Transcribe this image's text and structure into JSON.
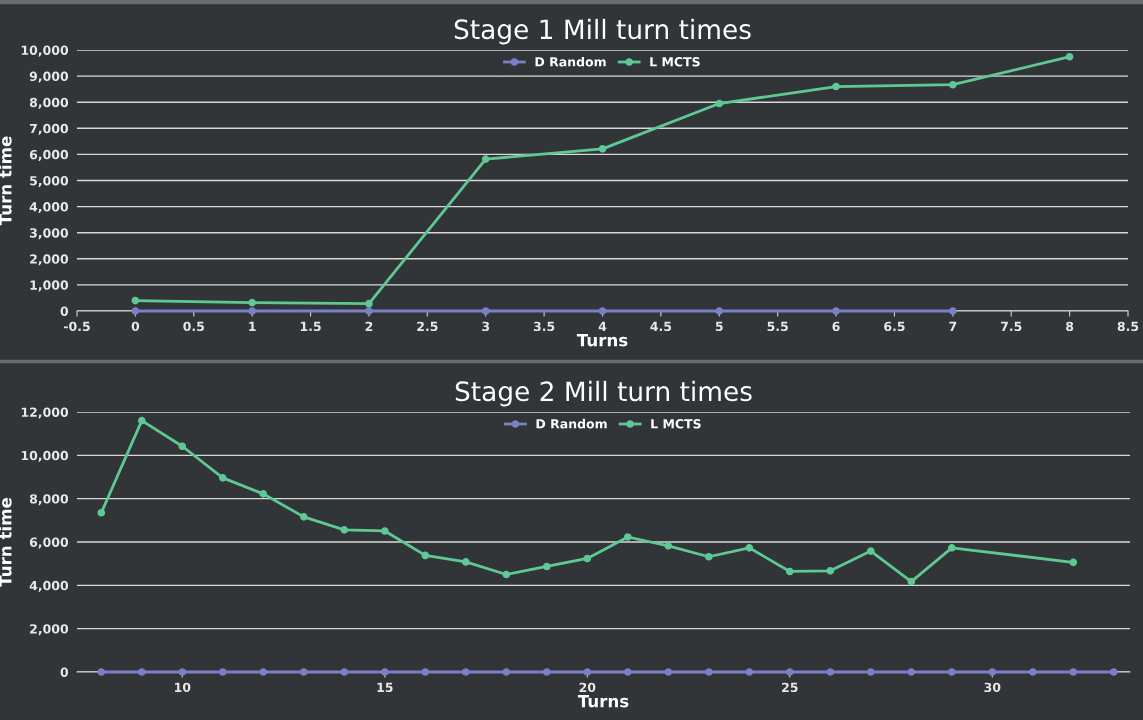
{
  "chart_data": [
    {
      "type": "line",
      "title": "Stage 1 Mill turn times",
      "xlabel": "Turns",
      "ylabel": "Turn time",
      "xlim": [
        -0.5,
        8.5
      ],
      "xticks": [
        -0.5,
        0,
        0.5,
        1,
        1.5,
        2,
        2.5,
        3,
        3.5,
        4,
        4.5,
        5,
        5.5,
        6,
        6.5,
        7,
        7.5,
        8,
        8.5
      ],
      "ylim": [
        0,
        10000
      ],
      "yticks": [
        0,
        {
          "value": 1000,
          "label": "1,000"
        },
        {
          "value": 2000,
          "label": "2,000"
        },
        {
          "value": 3000,
          "label": "3,000"
        },
        {
          "value": 4000,
          "label": "4,000"
        },
        {
          "value": 5000,
          "label": "5,000"
        },
        {
          "value": 6000,
          "label": "6,000"
        },
        {
          "value": 7000,
          "label": "7,000"
        },
        {
          "value": 8000,
          "label": "8,000"
        },
        {
          "value": 9000,
          "label": "9,000"
        },
        {
          "value": 10000,
          "label": "10,000"
        }
      ],
      "grid": "y",
      "legend": "top",
      "marker": "circle",
      "series": [
        {
          "name": "D Random",
          "color": "#7b80c4",
          "x": [
            0,
            1,
            2,
            3,
            4,
            5,
            6,
            7
          ],
          "values": [
            0,
            0,
            0,
            0,
            0,
            0,
            0,
            0
          ]
        },
        {
          "name": "L MCTS",
          "color": "#5ec994",
          "x": [
            0,
            1,
            2,
            3,
            4,
            5,
            6,
            7,
            8
          ],
          "values": [
            400,
            320,
            280,
            5820,
            6210,
            7950,
            8600,
            8670,
            9740
          ]
        }
      ]
    },
    {
      "type": "line",
      "title": "Stage 2 Mill turn times",
      "xlabel": "Turns",
      "ylabel": "Turn time",
      "xlim": [
        7.4,
        33.4
      ],
      "xticks": [
        10,
        15,
        20,
        25,
        30
      ],
      "ylim": [
        0,
        12000
      ],
      "yticks": [
        0,
        {
          "value": 2000,
          "label": "2,000"
        },
        {
          "value": 4000,
          "label": "4,000"
        },
        {
          "value": 6000,
          "label": "6,000"
        },
        {
          "value": 8000,
          "label": "8,000"
        },
        {
          "value": 10000,
          "label": "10,000"
        },
        {
          "value": 12000,
          "label": "12,000"
        }
      ],
      "grid": "y",
      "legend": "top",
      "marker": "circle",
      "series": [
        {
          "name": "D Random",
          "color": "#7b80c4",
          "x": [
            8,
            9,
            10,
            11,
            12,
            13,
            14,
            15,
            16,
            17,
            18,
            19,
            20,
            21,
            22,
            23,
            24,
            25,
            26,
            27,
            28,
            29,
            30,
            31,
            32,
            33
          ],
          "values": [
            0,
            0,
            0,
            0,
            0,
            0,
            0,
            0,
            0,
            0,
            0,
            0,
            0,
            0,
            0,
            0,
            0,
            0,
            0,
            0,
            0,
            0,
            0,
            0,
            0,
            0
          ]
        },
        {
          "name": "L MCTS",
          "color": "#5ec994",
          "x": [
            8,
            9,
            10,
            11,
            12,
            13,
            14,
            15,
            16,
            17,
            18,
            19,
            20,
            21,
            22,
            23,
            24,
            25,
            26,
            27,
            28,
            29,
            32
          ],
          "values": [
            7350,
            11600,
            10420,
            8960,
            8220,
            7160,
            6560,
            6510,
            5380,
            5080,
            4500,
            4870,
            5240,
            6230,
            5820,
            5320,
            5730,
            4640,
            4670,
            5580,
            4170,
            5730,
            5060
          ]
        }
      ]
    }
  ]
}
